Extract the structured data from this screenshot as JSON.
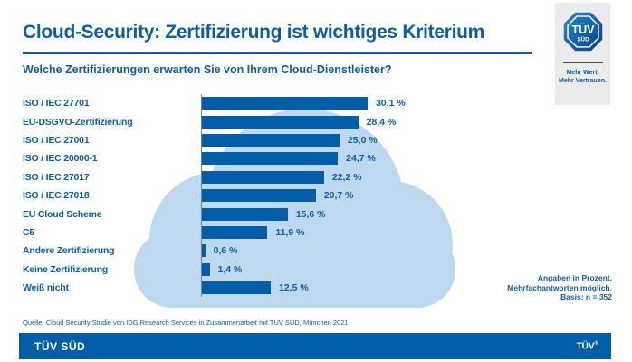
{
  "header": {
    "title": "Cloud-Security: Zertifizierung ist wichtiges Kriterium",
    "subtitle": "Welche Zertifizierungen erwarten Sie von Ihrem Cloud-Dienstleister?"
  },
  "logo": {
    "mark_line1": "TÜV",
    "mark_line2": "SÜD",
    "tagline_line1": "Mehr Wert.",
    "tagline_line2": "Mehr Vertrauen."
  },
  "chart_data": {
    "type": "bar",
    "orientation": "horizontal",
    "title": "Welche Zertifizierungen erwarten Sie von Ihrem Cloud-Dienstleister?",
    "categories": [
      "ISO / IEC 27701",
      "EU-DSGVO-Zertifizierung",
      "ISO / IEC 27001",
      "ISO / IEC 20000-1",
      "ISO / IEC 27017",
      "ISO / IEC 27018",
      "EU Cloud Scheme",
      "C5",
      "Andere Zertifizierung",
      "Keine Zertifizierung",
      "Weiß nicht"
    ],
    "values": [
      30.1,
      28.4,
      25.0,
      24.7,
      22.2,
      20.7,
      15.6,
      11.9,
      0.6,
      1.4,
      12.5
    ],
    "value_labels": [
      "30,1 %",
      "28,4 %",
      "25,0 %",
      "24,7 %",
      "22,2 %",
      "20,7 %",
      "15,6 %",
      "11,9 %",
      "0,6 %",
      "1,4 %",
      "12,5 %"
    ],
    "unit": "percent",
    "xlim": [
      0,
      33
    ],
    "grid": false,
    "legend": false,
    "bar_color": "#005ea8",
    "background_cloud_color": "#bdd8ef"
  },
  "notes": {
    "line1": "Angaben in Prozent.",
    "line2": "Mehrfachantworten möglich.",
    "line3": "Basis: n = 352"
  },
  "source": "Quelle: Cloud Security Studie von IDG Research Services in Zusammenarbeit mit TÜV SÜD, München 2021",
  "footer": {
    "brand": "TÜV SÜD",
    "trademark": "TÜV",
    "registered": "®"
  }
}
